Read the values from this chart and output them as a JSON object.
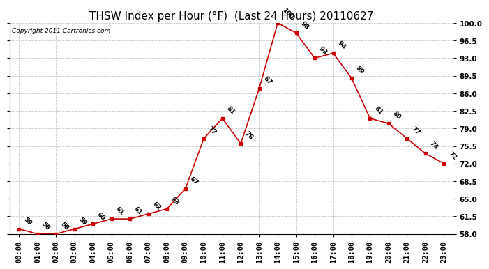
{
  "title": "THSW Index per Hour (°F)  (Last 24 Hours) 20110627",
  "copyright": "Copyright 2011 Cartronics.com",
  "hours": [
    "00:00",
    "01:00",
    "02:00",
    "03:00",
    "04:00",
    "05:00",
    "06:00",
    "07:00",
    "08:00",
    "09:00",
    "10:00",
    "11:00",
    "12:00",
    "13:00",
    "14:00",
    "15:00",
    "16:00",
    "17:00",
    "18:00",
    "19:00",
    "20:00",
    "21:00",
    "22:00",
    "23:00"
  ],
  "values": [
    59,
    58,
    58,
    59,
    60,
    61,
    61,
    62,
    63,
    67,
    77,
    81,
    76,
    87,
    100,
    98,
    93,
    94,
    89,
    81,
    80,
    77,
    74,
    72
  ],
  "ylim_min": 58.0,
  "ylim_max": 100.0,
  "yticks": [
    58.0,
    61.5,
    65.0,
    68.5,
    72.0,
    75.5,
    79.0,
    82.5,
    86.0,
    89.5,
    93.0,
    96.5,
    100.0
  ],
  "line_color": "#cc0000",
  "bg_color": "#ffffff",
  "grid_color": "#c8c8c8",
  "title_fontsize": 11,
  "copyright_fontsize": 6.5,
  "label_fontsize": 7.5,
  "annot_fontsize": 6.5
}
